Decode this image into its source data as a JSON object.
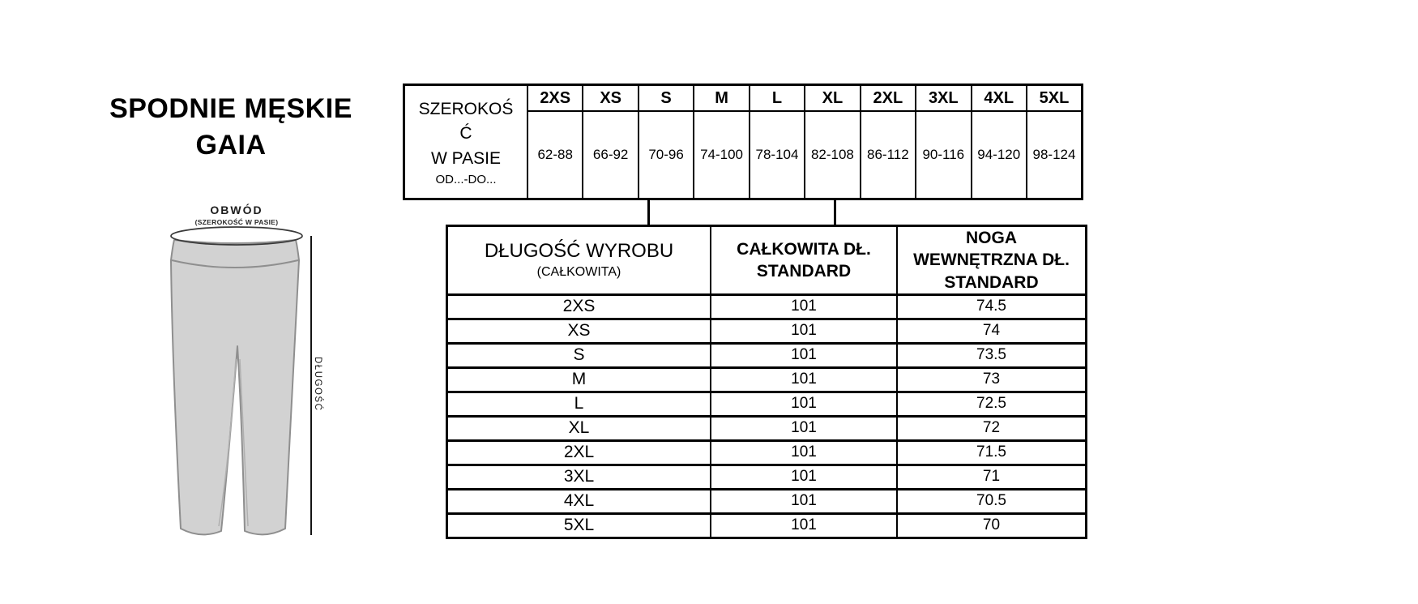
{
  "page_title": "SPODNIE MĘSKIE\nGAIA",
  "figure": {
    "waist_label": "OBWÓD",
    "waist_sublabel": "(SZEROKOŚĆ W PASIE)",
    "length_label": "DŁUGOŚĆ",
    "fill_color": "#d2d2d2",
    "outline_color": "#8f8f8f",
    "seam_color": "#b0b0b0",
    "dimension_line_color": "#141414",
    "ellipse_outline_color": "#3a3a3a"
  },
  "waist_table": {
    "header_main": "SZEROKOŚ\nĆ\nW PASIE",
    "header_sub": "OD...-DO...",
    "sizes": [
      "2XS",
      "XS",
      "S",
      "M",
      "L",
      "XL",
      "2XL",
      "3XL",
      "4XL",
      "5XL"
    ],
    "ranges": [
      "62-88",
      "66-92",
      "70-96",
      "74-100",
      "78-104",
      "82-108",
      "86-112",
      "90-116",
      "94-120",
      "98-124"
    ]
  },
  "length_table": {
    "col1_main": "DŁUGOŚĆ WYROBU",
    "col1_sub": "(CAŁKOWITA)",
    "col2_header": "CAŁKOWITA DŁ.\nSTANDARD",
    "col3_header": "NOGA\nWEWNĘTRZNA DŁ.\nSTANDARD",
    "rows": [
      {
        "size": "2XS",
        "total_length": "101",
        "inner_leg_length": "74.5"
      },
      {
        "size": "XS",
        "total_length": "101",
        "inner_leg_length": "74"
      },
      {
        "size": "S",
        "total_length": "101",
        "inner_leg_length": "73.5"
      },
      {
        "size": "M",
        "total_length": "101",
        "inner_leg_length": "73"
      },
      {
        "size": "L",
        "total_length": "101",
        "inner_leg_length": "72.5"
      },
      {
        "size": "XL",
        "total_length": "101",
        "inner_leg_length": "72"
      },
      {
        "size": "2XL",
        "total_length": "101",
        "inner_leg_length": "71.5"
      },
      {
        "size": "3XL",
        "total_length": "101",
        "inner_leg_length": "71"
      },
      {
        "size": "4XL",
        "total_length": "101",
        "inner_leg_length": "70.5"
      },
      {
        "size": "5XL",
        "total_length": "101",
        "inner_leg_length": "70"
      }
    ]
  }
}
